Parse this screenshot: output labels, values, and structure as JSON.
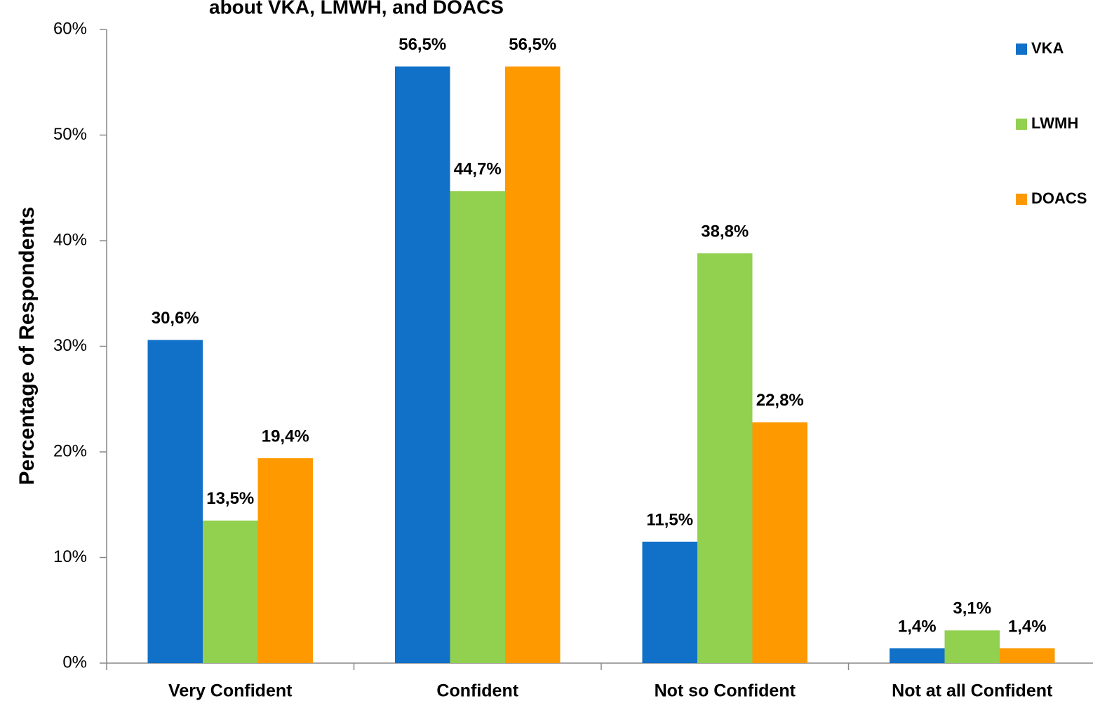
{
  "chart_data": {
    "type": "bar",
    "title": "about VKA, LMWH, and DOACS",
    "ylabel": "Percentage of Respondents",
    "categories": [
      "Very Confident",
      "Confident",
      "Not so Confident",
      "Not at all Confident"
    ],
    "series": [
      {
        "name": "VKA",
        "color": "#1170c8",
        "values": [
          30.6,
          56.5,
          11.5,
          1.4
        ],
        "value_labels": [
          "30,6%",
          "56,5%",
          "11,5%",
          "1,4%"
        ]
      },
      {
        "name": "LWMH",
        "color": "#92d050",
        "values": [
          13.5,
          44.7,
          38.8,
          3.1
        ],
        "value_labels": [
          "13,5%",
          "44,7%",
          "38,8%",
          "3,1%"
        ]
      },
      {
        "name": "DOACS",
        "color": "#ff9900",
        "values": [
          19.4,
          56.5,
          22.8,
          1.4
        ],
        "value_labels": [
          "19,4%",
          "56,5%",
          "22,8%",
          "1,4%"
        ]
      }
    ],
    "ylim": [
      0,
      60
    ],
    "yticks": [
      {
        "value": 0,
        "label": "0%"
      },
      {
        "value": 10,
        "label": "10%"
      },
      {
        "value": 20,
        "label": "20%"
      },
      {
        "value": 30,
        "label": "30%"
      },
      {
        "value": 40,
        "label": "40%"
      },
      {
        "value": 50,
        "label": "50%"
      },
      {
        "value": 60,
        "label": "60%"
      }
    ],
    "legend": "top-right"
  }
}
